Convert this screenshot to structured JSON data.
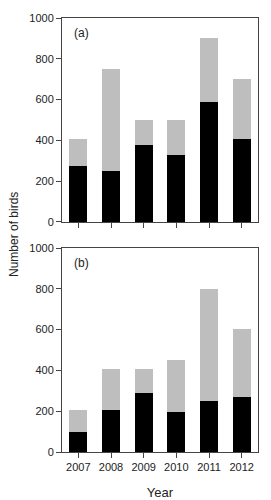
{
  "chart_data": [
    {
      "type": "bar",
      "stacked": true,
      "categories": [
        "2007",
        "2008",
        "2009",
        "2010",
        "2011",
        "2012"
      ],
      "series": [
        {
          "color": "#000000",
          "values": [
            275,
            250,
            375,
            330,
            590,
            405
          ]
        },
        {
          "color": "#bebebe",
          "values": [
            130,
            500,
            125,
            170,
            310,
            295
          ]
        }
      ],
      "ylim": [
        0,
        1000
      ],
      "yticks": [
        0,
        200,
        400,
        600,
        800,
        1000
      ],
      "ylabel": "Number of birds",
      "annotations": [
        "(a)"
      ],
      "grid": false,
      "tick_labels": "y"
    },
    {
      "type": "bar",
      "stacked": true,
      "categories": [
        "2007",
        "2008",
        "2009",
        "2010",
        "2011",
        "2012"
      ],
      "series": [
        {
          "color": "#000000",
          "values": [
            100,
            205,
            290,
            195,
            250,
            270
          ]
        },
        {
          "color": "#bebebe",
          "values": [
            105,
            200,
            115,
            255,
            550,
            335
          ]
        }
      ],
      "ylim": [
        0,
        1000
      ],
      "yticks": [
        0,
        200,
        400,
        600,
        800,
        1000
      ],
      "xlabel": "Year",
      "annotations": [
        "(b)"
      ],
      "grid": false
    }
  ]
}
